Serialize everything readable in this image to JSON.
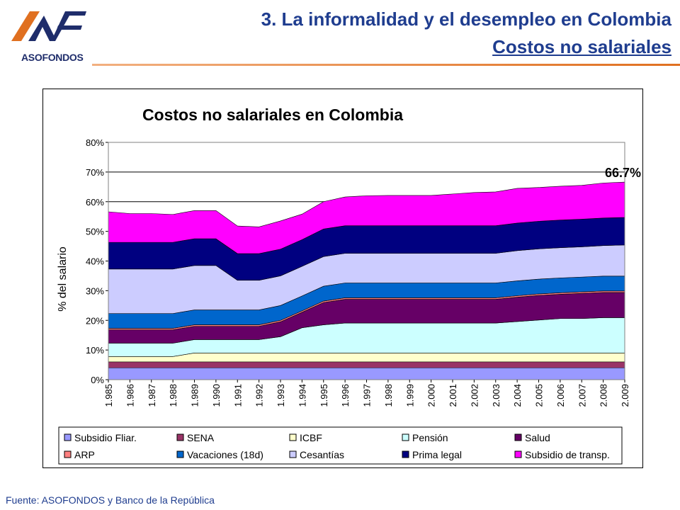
{
  "header": {
    "logo_text": "ASOFONDOS",
    "title": "3. La informalidad y el desempleo en Colombia",
    "subtitle": "Costos no salariales"
  },
  "footer": {
    "source": "Fuente: ASOFONDOS y Banco de la República"
  },
  "colors": {
    "title": "#1f3d8f",
    "accent_line": "#e07020"
  },
  "chart_data": {
    "type": "area",
    "stacked": true,
    "title": "Costos no salariales en Colombia",
    "ylabel": "% del salario",
    "xlabel": "",
    "ylim": [
      0,
      80
    ],
    "yticks": [
      "0%",
      "10%",
      "20%",
      "30%",
      "40%",
      "50%",
      "60%",
      "70%",
      "80%"
    ],
    "grid": "horizontal",
    "legend_position": "bottom",
    "annotation": "66.7%",
    "x": [
      "1.985",
      "1.986",
      "1.987",
      "1.988",
      "1.989",
      "1.990",
      "1.991",
      "1.992",
      "1.993",
      "1.994",
      "1.995",
      "1.996",
      "1.997",
      "1.998",
      "1.999",
      "2.000",
      "2.001",
      "2.002",
      "2.003",
      "2.004",
      "2.005",
      "2.006",
      "2.007",
      "2.008",
      "2.009"
    ],
    "series": [
      {
        "name": "Subsidio Fliar.",
        "color": "#9999ff",
        "values": [
          4,
          4,
          4,
          4,
          4,
          4,
          4,
          4,
          4,
          4,
          4,
          4,
          4,
          4,
          4,
          4,
          4,
          4,
          4,
          4,
          4,
          4,
          4,
          4,
          4
        ]
      },
      {
        "name": "SENA",
        "color": "#993366",
        "values": [
          2,
          2,
          2,
          2,
          2,
          2,
          2,
          2,
          2,
          2,
          2,
          2,
          2,
          2,
          2,
          2,
          2,
          2,
          2,
          2,
          2,
          2,
          2,
          2,
          2
        ]
      },
      {
        "name": "ICBF",
        "color": "#ffffcc",
        "values": [
          1.8,
          1.8,
          1.8,
          1.8,
          3,
          3,
          3,
          3,
          3,
          3,
          3,
          3,
          3,
          3,
          3,
          3,
          3,
          3,
          3,
          3,
          3,
          3,
          3,
          3,
          3
        ]
      },
      {
        "name": "Pensión",
        "color": "#ccffff",
        "values": [
          4.5,
          4.5,
          4.5,
          4.5,
          4.5,
          4.5,
          4.5,
          4.5,
          5.5,
          8.5,
          9.5,
          10.1,
          10.1,
          10.1,
          10.1,
          10.1,
          10.1,
          10.1,
          10.1,
          10.6,
          11.1,
          11.6,
          11.6,
          11.9,
          11.9
        ]
      },
      {
        "name": "Salud",
        "color": "#660066",
        "values": [
          4.5,
          4.5,
          4.5,
          4.5,
          4.5,
          4.5,
          4.5,
          4.5,
          5,
          5.2,
          7.5,
          8,
          8,
          8,
          8,
          8,
          8,
          8,
          8,
          8.2,
          8.3,
          8.2,
          8.5,
          8.5,
          8.5
        ]
      },
      {
        "name": "ARP",
        "color": "#ff8080",
        "values": [
          0.5,
          0.5,
          0.5,
          0.5,
          0.5,
          0.5,
          0.5,
          0.5,
          0.5,
          0.5,
          0.5,
          0.5,
          0.5,
          0.5,
          0.5,
          0.5,
          0.5,
          0.5,
          0.5,
          0.5,
          0.5,
          0.5,
          0.5,
          0.5,
          0.5
        ]
      },
      {
        "name": "Vacaciones (18d)",
        "color": "#0066cc",
        "values": [
          5,
          5,
          5,
          5,
          5,
          5,
          5,
          5,
          5,
          5,
          5,
          5,
          5,
          5,
          5,
          5,
          5,
          5,
          5,
          5,
          5,
          5,
          5,
          5,
          5
        ]
      },
      {
        "name": "Cesantías",
        "color": "#ccccff",
        "values": [
          15,
          15,
          15,
          15,
          15,
          15,
          10,
          10,
          10,
          10,
          10,
          10,
          10,
          10,
          10,
          10,
          10,
          10,
          10,
          10.2,
          10.2,
          10.2,
          10.2,
          10.3,
          10.5
        ]
      },
      {
        "name": "Prima legal",
        "color": "#000080",
        "values": [
          9,
          9,
          9,
          9,
          9,
          9,
          9,
          9,
          9,
          9,
          9.3,
          9.3,
          9.3,
          9.3,
          9.3,
          9.3,
          9.3,
          9.3,
          9.3,
          9.3,
          9.3,
          9.3,
          9.3,
          9.3,
          9.3
        ]
      },
      {
        "name": "Subsidio de transp.",
        "color": "#ff00ff",
        "values": [
          10.3,
          9.7,
          9.7,
          9.4,
          9.5,
          9.5,
          9.3,
          9,
          9.5,
          8.6,
          9.2,
          9.7,
          10.1,
          10.2,
          10.2,
          10.2,
          10.7,
          11.2,
          11.4,
          11.7,
          11.4,
          11.4,
          11.4,
          11.8,
          11.9
        ]
      }
    ]
  }
}
